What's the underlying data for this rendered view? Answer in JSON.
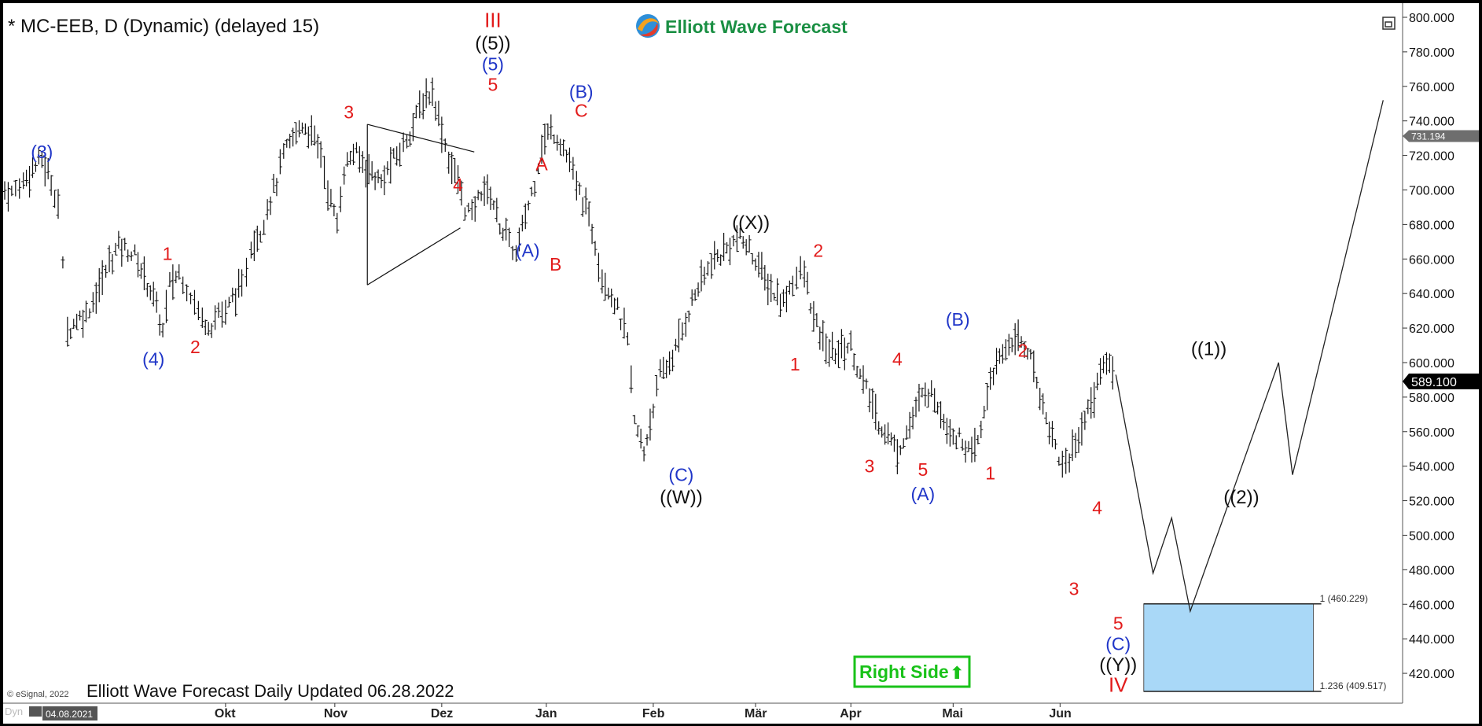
{
  "window": {
    "title": "* MC-EEB, D (Dynamic) (delayed 15)",
    "brand": "Elliott Wave Forecast",
    "footer": "Elliott Wave Forecast Daily Updated 06.28.2022",
    "copyright": "© eSignal, 2022",
    "date_box": "04.08.2021",
    "corner_left": "Dyn"
  },
  "colors": {
    "background": "#ffffff",
    "frame": "#000000",
    "bars": "#111111",
    "red": "#e21b1b",
    "blue": "#1f35c8",
    "black": "#111111",
    "target_box": "#a9d8f7",
    "right_side": "#19c219",
    "price_tag_bg": "#000000",
    "price_tag_gray": "#6e6e6e"
  },
  "chart_data": {
    "type": "line",
    "title": "* MC-EEB, D (Dynamic) (delayed 15)",
    "xlabel": "",
    "ylabel": "",
    "ylim": [
      410,
      800
    ],
    "x_ticks": [
      "Okt",
      "Nov",
      "Dez",
      "Jan",
      "Feb",
      "Mär",
      "Apr",
      "Mai",
      "Jun"
    ],
    "y_ticks": [
      "800.000",
      "780.000",
      "760.000",
      "740.000",
      "720.000",
      "700.000",
      "680.000",
      "660.000",
      "640.000",
      "620.000",
      "600.000",
      "580.000",
      "560.000",
      "540.000",
      "520.000",
      "500.000",
      "480.000",
      "460.000",
      "440.000",
      "420.000"
    ],
    "y_tick_values": [
      800,
      780,
      760,
      740,
      720,
      700,
      680,
      660,
      640,
      620,
      600,
      580,
      560,
      540,
      520,
      500,
      480,
      460,
      440,
      420
    ],
    "price_tags": [
      {
        "label": "731.194",
        "value": 731.194,
        "style": "gray"
      },
      {
        "label": "589.100",
        "value": 589.1,
        "style": "black"
      }
    ],
    "series": [
      {
        "name": "",
        "kind": "price-path",
        "x": [
          0,
          3,
          8,
          12,
          16,
          20,
          23,
          25,
          27,
          31,
          35,
          38,
          42,
          45,
          49,
          53,
          56,
          60,
          64,
          68,
          71,
          75,
          80,
          85,
          89,
          92,
          95,
          98,
          102,
          104,
          106,
          110,
          113,
          117,
          120,
          124,
          128,
          132,
          136,
          139,
          143,
          146,
          150,
          154,
          158,
          162,
          166,
          170,
          173,
          177,
          180,
          184,
          188,
          191,
          195,
          198,
          201,
          205,
          209,
          213,
          217,
          220,
          224,
          228,
          231,
          235,
          239,
          243,
          246,
          250,
          254,
          257,
          261,
          265,
          268,
          271,
          275,
          279,
          282,
          286,
          290,
          293,
          297,
          301,
          304,
          308,
          312,
          315,
          319,
          323,
          327,
          331,
          335,
          339
        ],
        "y": [
          700,
          698,
          705,
          712,
          718,
          705,
          692,
          655,
          618,
          625,
          628,
          636,
          648,
          658,
          668,
          665,
          662,
          650,
          638,
          618,
          645,
          652,
          640,
          625,
          622,
          630,
          628,
          638,
          642,
          655,
          668,
          676,
          690,
          705,
          720,
          730,
          738,
          732,
          722,
          700,
          680,
          712,
          722,
          716,
          710,
          704,
          715,
          722,
          730,
          742,
          752,
          757,
          735,
          718,
          705,
          690,
          685,
          700,
          698,
          680,
          670,
          662,
          685,
          705,
          726,
          735,
          728,
          716,
          702,
          690,
          670,
          650,
          640,
          625,
          612,
          565,
          548,
          575,
          592,
          600,
          612,
          625,
          640,
          650,
          658,
          662,
          668,
          672,
          668,
          660,
          648,
          640,
          635,
          648
        ]
      },
      {
        "name": "",
        "kind": "price-path",
        "x": [
          339,
          344,
          348,
          352,
          356,
          360,
          364,
          368,
          372,
          376,
          380,
          384,
          388,
          392,
          396,
          400,
          404,
          408,
          412,
          416,
          420,
          424,
          428,
          432,
          436,
          440,
          444,
          448,
          452,
          455,
          458
        ],
        "y": [
          648,
          652,
          625,
          612,
          605,
          608,
          610,
          592,
          580,
          565,
          558,
          548,
          560,
          572,
          585,
          580,
          568,
          558,
          555,
          545,
          560,
          592,
          600,
          612,
          614,
          608,
          590,
          568,
          552,
          540,
          545
        ]
      },
      {
        "name": "",
        "kind": "price-path",
        "x": [
          458,
          462,
          466,
          470,
          474,
          478
        ],
        "y": [
          545,
          558,
          572,
          588,
          602,
          592
        ]
      }
    ],
    "projection": {
      "name": "",
      "x": [
        478,
        494,
        502,
        510,
        548,
        554,
        593
      ],
      "y": [
        593,
        478,
        510,
        456,
        600,
        535,
        752
      ]
    },
    "triangle": {
      "x": [
        156,
        202,
        156,
        196
      ],
      "y": [
        738,
        722,
        645,
        678
      ]
    },
    "target_zone": {
      "y_top": 460.229,
      "y_bottom": 409.517,
      "labels": [
        "1 (460.229)",
        "1.236 (409.517)"
      ]
    },
    "right_side_label": "Right Side",
    "annotations": [
      {
        "text": "(3)",
        "x": 16,
        "y": 722,
        "color": "blue"
      },
      {
        "text": "(4)",
        "x": 64,
        "y": 602,
        "color": "blue"
      },
      {
        "text": "1",
        "x": 70,
        "y": 663,
        "color": "red"
      },
      {
        "text": "2",
        "x": 82,
        "y": 609,
        "color": "red"
      },
      {
        "text": "3",
        "x": 148,
        "y": 745,
        "color": "red"
      },
      {
        "text": "4",
        "x": 195,
        "y": 703,
        "color": "red"
      },
      {
        "text": "III",
        "x": 210,
        "y": 798,
        "color": "red"
      },
      {
        "text": "((5))",
        "x": 210,
        "y": 785,
        "color": "black"
      },
      {
        "text": "(5)",
        "x": 210,
        "y": 773,
        "color": "blue"
      },
      {
        "text": "5",
        "x": 210,
        "y": 761,
        "color": "red"
      },
      {
        "text": "(A)",
        "x": 225,
        "y": 665,
        "color": "blue"
      },
      {
        "text": "A",
        "x": 231,
        "y": 715,
        "color": "red"
      },
      {
        "text": "B",
        "x": 237,
        "y": 657,
        "color": "red"
      },
      {
        "text": "(B)",
        "x": 248,
        "y": 757,
        "color": "blue"
      },
      {
        "text": "C",
        "x": 248,
        "y": 746,
        "color": "red"
      },
      {
        "text": "(C)",
        "x": 291,
        "y": 535,
        "color": "blue"
      },
      {
        "text": "((W))",
        "x": 291,
        "y": 522,
        "color": "black"
      },
      {
        "text": "((X))",
        "x": 321,
        "y": 681,
        "color": "black"
      },
      {
        "text": "1",
        "x": 340,
        "y": 599,
        "color": "red"
      },
      {
        "text": "2",
        "x": 350,
        "y": 665,
        "color": "red"
      },
      {
        "text": "3",
        "x": 372,
        "y": 540,
        "color": "red"
      },
      {
        "text": "4",
        "x": 384,
        "y": 602,
        "color": "red"
      },
      {
        "text": "5",
        "x": 395,
        "y": 538,
        "color": "red"
      },
      {
        "text": "(A)",
        "x": 395,
        "y": 524,
        "color": "blue"
      },
      {
        "text": "(B)",
        "x": 410,
        "y": 625,
        "color": "blue"
      },
      {
        "text": "1",
        "x": 424,
        "y": 536,
        "color": "red"
      },
      {
        "text": "2",
        "x": 438,
        "y": 607,
        "color": "red"
      },
      {
        "text": "3",
        "x": 460,
        "y": 469,
        "color": "red"
      },
      {
        "text": "4",
        "x": 470,
        "y": 516,
        "color": "red"
      },
      {
        "text": "5",
        "x": 479,
        "y": 449,
        "color": "red"
      },
      {
        "text": "(C)",
        "x": 479,
        "y": 437,
        "color": "blue"
      },
      {
        "text": "((Y))",
        "x": 479,
        "y": 425,
        "color": "black"
      },
      {
        "text": "IV",
        "x": 479,
        "y": 413,
        "color": "red"
      },
      {
        "text": "((1))",
        "x": 518,
        "y": 608,
        "color": "black"
      },
      {
        "text": "((2))",
        "x": 532,
        "y": 522,
        "color": "black"
      }
    ]
  }
}
